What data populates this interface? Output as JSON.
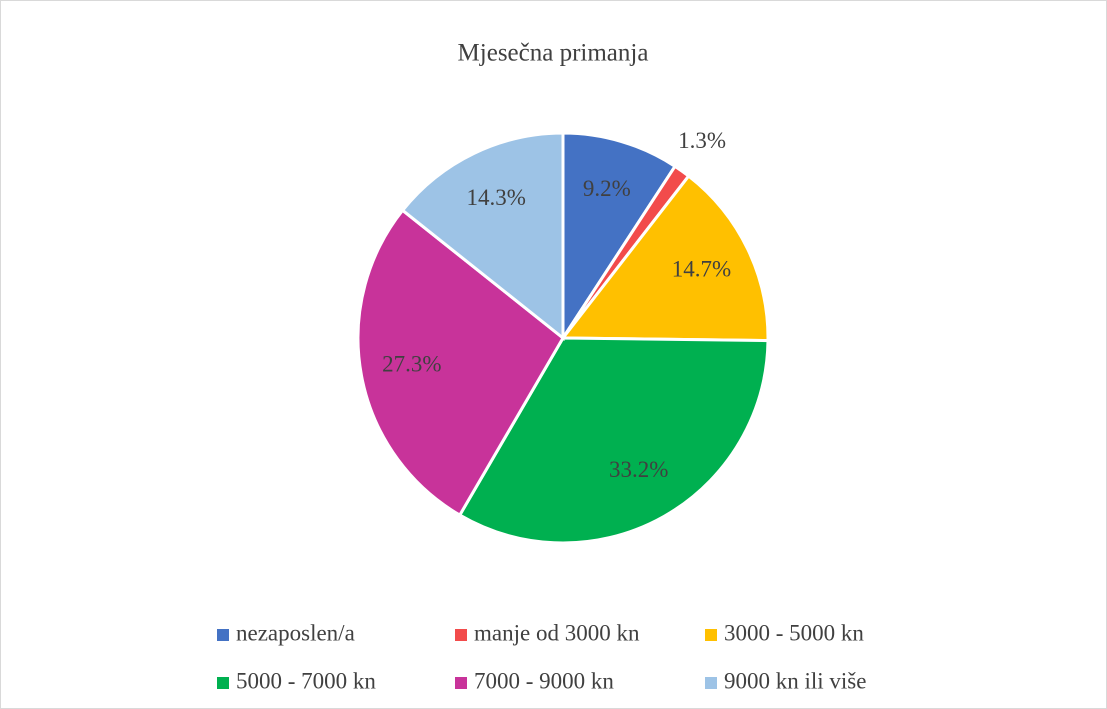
{
  "chart_data": {
    "type": "pie",
    "title": "Mjesečna primanja",
    "categories": [
      "nezaposlen/a",
      "manje od 3000 kn",
      "3000 - 5000 kn",
      "5000 - 7000 kn",
      "7000 - 9000 kn",
      "9000 kn ili više"
    ],
    "values": [
      9.2,
      1.3,
      14.7,
      33.2,
      27.3,
      14.3
    ],
    "value_labels": [
      "9.2%",
      "1.3%",
      "14.7%",
      "33.2%",
      "27.3%",
      "14.3%"
    ],
    "colors": [
      "#4472c4",
      "#f24b4b",
      "#ffc000",
      "#00b050",
      "#c8339a",
      "#9dc3e6"
    ],
    "legend": "bottom"
  }
}
